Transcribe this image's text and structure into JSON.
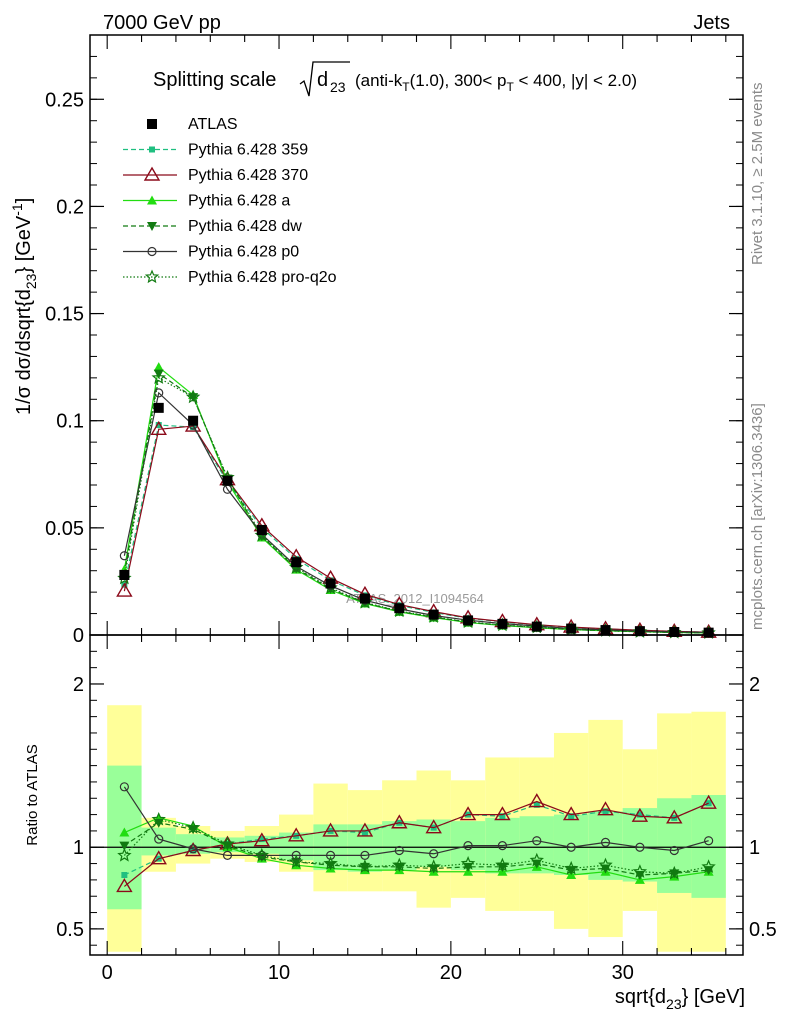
{
  "header": {
    "left": "7000 GeV pp",
    "right": "Jets"
  },
  "side_labels": {
    "rivet": "Rivet 3.1.10, ≥ 2.5M events",
    "mcplots": "mcplots.cern.ch [arXiv:1306.3436]"
  },
  "watermark": "ATLAS_2012_I1094564",
  "chart_data": [
    {
      "type": "line",
      "title_main": "Splitting scale",
      "title_kin": "(anti-k",
      "title_kin_sub": "T",
      "title_kin2": "(1.0), 300< p",
      "title_pt_sub": "T",
      "title_kin3": " < 400, |y| < 2.0)",
      "xlabel": "sqrt{d",
      "xlabel_sub": "23",
      "xlabel_end": "} [GeV]",
      "ylabel": "1/σ dσ/dsqrt{d",
      "ylabel_sub": "23",
      "ylabel_end": "} [GeV",
      "ylabel_sup": "-1",
      "ylabel_close": "]",
      "xlim": [
        -1,
        37
      ],
      "ylim": [
        0,
        0.28
      ],
      "x_ticks": [
        0,
        10,
        20,
        30
      ],
      "y_ticks": [
        {
          "v": 0,
          "label": "0"
        },
        {
          "v": 0.05,
          "label": "0.05"
        },
        {
          "v": 0.1,
          "label": "0.1"
        },
        {
          "v": 0.15,
          "label": "0.15"
        },
        {
          "v": 0.2,
          "label": "0.2"
        },
        {
          "v": 0.25,
          "label": "0.25"
        }
      ],
      "x": [
        1,
        3,
        5,
        7,
        9,
        11,
        13,
        15,
        17,
        19,
        21,
        23,
        25,
        27,
        29,
        31,
        33,
        35
      ],
      "data": {
        "name": "ATLAS",
        "values": [
          0.028,
          0.106,
          0.1,
          0.072,
          0.049,
          0.034,
          0.024,
          0.017,
          0.0125,
          0.0095,
          0.0068,
          0.0052,
          0.0039,
          0.003,
          0.0023,
          0.0018,
          0.0014,
          0.0011
        ]
      },
      "series": [
        {
          "name": "Pythia 6.428 359",
          "color": "#1fbf80",
          "dash": "5,3",
          "marker": "square",
          "values": [
            0.0235,
            0.098,
            0.097,
            0.0715,
            0.05,
            0.0355,
            0.0255,
            0.0185,
            0.0138,
            0.0105,
            0.0078,
            0.0061,
            0.0047,
            0.0036,
            0.0028,
            0.0022,
            0.0017,
            0.0013
          ]
        },
        {
          "name": "Pythia 6.428 370",
          "color": "#8b0a1a",
          "dash": "",
          "marker": "triangle-open",
          "values": [
            0.0205,
            0.096,
            0.0975,
            0.0725,
            0.051,
            0.0365,
            0.0265,
            0.019,
            0.0142,
            0.0109,
            0.008,
            0.0063,
            0.0048,
            0.0037,
            0.0029,
            0.0022,
            0.0017,
            0.0013
          ]
        },
        {
          "name": "Pythia 6.428 a",
          "color": "#22dd11",
          "dash": "",
          "marker": "triangle",
          "values": [
            0.0305,
            0.125,
            0.112,
            0.0715,
            0.0455,
            0.0305,
            0.021,
            0.0147,
            0.0108,
            0.0081,
            0.0058,
            0.0044,
            0.0034,
            0.0025,
            0.002,
            0.0015,
            0.0012,
            0.0009
          ]
        },
        {
          "name": "Pythia 6.428 dw",
          "color": "#117a11",
          "dash": "5,3",
          "marker": "triangle-down",
          "values": [
            0.0285,
            0.122,
            0.111,
            0.073,
            0.046,
            0.031,
            0.0215,
            0.015,
            0.011,
            0.0083,
            0.006,
            0.0046,
            0.0035,
            0.0026,
            0.002,
            0.0016,
            0.0012,
            0.0009
          ]
        },
        {
          "name": "Pythia 6.428 p0",
          "color": "#333333",
          "dash": "",
          "marker": "circle-open",
          "values": [
            0.037,
            0.113,
            0.098,
            0.068,
            0.047,
            0.032,
            0.023,
            0.0162,
            0.0122,
            0.0091,
            0.0069,
            0.0053,
            0.0042,
            0.003,
            0.0024,
            0.0018,
            0.0014,
            0.0012
          ]
        },
        {
          "name": "Pythia 6.428 pro-q2o",
          "color": "#117a11",
          "dash": "1.5,2",
          "marker": "star",
          "values": [
            0.0265,
            0.12,
            0.111,
            0.0735,
            0.0465,
            0.0315,
            0.022,
            0.0152,
            0.0112,
            0.0085,
            0.0061,
            0.0046,
            0.0036,
            0.0026,
            0.002,
            0.0015,
            0.0012,
            0.001
          ]
        }
      ]
    },
    {
      "type": "line",
      "ylabel": "Ratio to ATLAS",
      "xlim": [
        -1,
        37
      ],
      "ylim": [
        0.34,
        2.3
      ],
      "y_ticks": [
        {
          "v": 0.5,
          "label": "0.5"
        },
        {
          "v": 1,
          "label": "1"
        },
        {
          "v": 2,
          "label": "2"
        }
      ],
      "bin_edges": [
        0,
        2,
        4,
        6,
        8,
        10,
        12,
        14,
        16,
        18,
        20,
        22,
        24,
        26,
        28,
        30,
        32,
        34,
        36
      ],
      "band_inner_lo": [
        0.62,
        0.95,
        0.96,
        0.97,
        0.96,
        0.92,
        0.86,
        0.85,
        0.86,
        0.88,
        0.86,
        0.84,
        0.84,
        0.83,
        0.8,
        0.79,
        0.72,
        0.69
      ],
      "band_inner_hi": [
        1.5,
        1.12,
        1.08,
        1.06,
        1.07,
        1.09,
        1.14,
        1.14,
        1.16,
        1.17,
        1.16,
        1.18,
        1.19,
        1.2,
        1.22,
        1.24,
        1.3,
        1.32
      ],
      "band_outer_lo": [
        0.36,
        0.85,
        0.9,
        0.93,
        0.91,
        0.85,
        0.73,
        0.73,
        0.73,
        0.63,
        0.69,
        0.61,
        0.61,
        0.5,
        0.45,
        0.61,
        0.36,
        0.36
      ],
      "band_outer_hi": [
        1.87,
        1.18,
        1.13,
        1.1,
        1.13,
        1.2,
        1.39,
        1.35,
        1.41,
        1.47,
        1.41,
        1.55,
        1.55,
        1.7,
        1.78,
        1.6,
        1.82,
        1.83
      ],
      "x": [
        1,
        3,
        5,
        7,
        9,
        11,
        13,
        15,
        17,
        19,
        21,
        23,
        25,
        27,
        29,
        31,
        33,
        35
      ],
      "series": [
        {
          "name": "Pythia 6.428 359",
          "color": "#1fbf80",
          "dash": "5,3",
          "marker": "square",
          "values": [
            0.83,
            0.93,
            0.98,
            1.02,
            1.05,
            1.07,
            1.1,
            1.09,
            1.15,
            1.12,
            1.2,
            1.19,
            1.26,
            1.19,
            1.22,
            1.2,
            1.18,
            1.27
          ]
        },
        {
          "name": "Pythia 6.428 370",
          "color": "#8b0a1a",
          "dash": "",
          "marker": "triangle-open",
          "values": [
            0.76,
            0.93,
            0.98,
            1.02,
            1.04,
            1.07,
            1.1,
            1.1,
            1.15,
            1.12,
            1.2,
            1.2,
            1.28,
            1.2,
            1.23,
            1.19,
            1.18,
            1.27
          ]
        },
        {
          "name": "Pythia 6.428 a",
          "color": "#22dd11",
          "dash": "",
          "marker": "triangle",
          "values": [
            1.09,
            1.18,
            1.13,
            1.0,
            0.93,
            0.89,
            0.87,
            0.86,
            0.86,
            0.85,
            0.85,
            0.85,
            0.88,
            0.83,
            0.85,
            0.8,
            0.82,
            0.85
          ]
        },
        {
          "name": "Pythia 6.428 dw",
          "color": "#117a11",
          "dash": "5,3",
          "marker": "triangle-down",
          "values": [
            1.01,
            1.15,
            1.11,
            1.01,
            0.94,
            0.91,
            0.89,
            0.88,
            0.88,
            0.87,
            0.88,
            0.88,
            0.9,
            0.86,
            0.87,
            0.83,
            0.84,
            0.86
          ]
        },
        {
          "name": "Pythia 6.428 p0",
          "color": "#333333",
          "dash": "",
          "marker": "circle-open",
          "values": [
            1.37,
            1.05,
            0.99,
            0.95,
            0.95,
            0.95,
            0.95,
            0.95,
            0.98,
            0.96,
            1.01,
            1.01,
            1.04,
            1.0,
            1.03,
            1.0,
            0.98,
            1.04
          ]
        },
        {
          "name": "Pythia 6.428 pro-q2o",
          "color": "#117a11",
          "dash": "1.5,2",
          "marker": "star",
          "values": [
            0.95,
            1.17,
            1.12,
            1.02,
            0.95,
            0.91,
            0.9,
            0.88,
            0.89,
            0.88,
            0.9,
            0.89,
            0.92,
            0.87,
            0.89,
            0.85,
            0.84,
            0.88
          ]
        }
      ]
    }
  ]
}
